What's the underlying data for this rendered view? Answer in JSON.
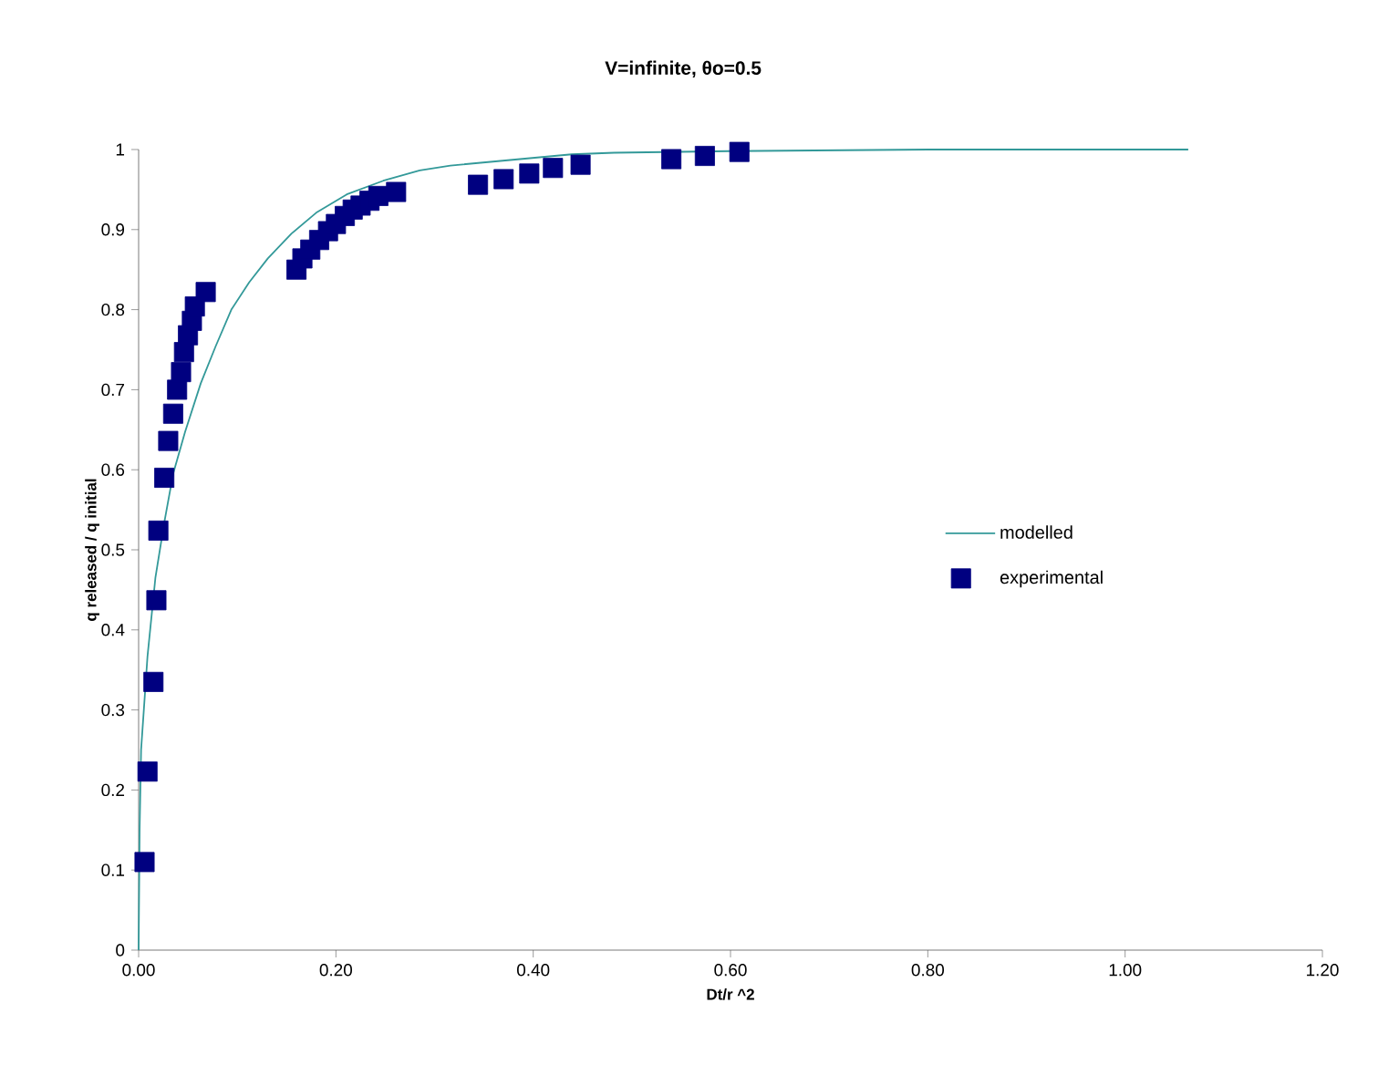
{
  "chart_data": {
    "type": "scatter",
    "title": "V=infinite, θo=0.5",
    "xlabel": "Dt/r ^2",
    "ylabel": "q released / q initial",
    "xlim": [
      0,
      1.2
    ],
    "xticks": [
      {
        "value": 0,
        "label": "0.00"
      },
      {
        "value": 0.2,
        "label": "0.20"
      },
      {
        "value": 0.4,
        "label": "0.40"
      },
      {
        "value": 0.6,
        "label": "0.60"
      },
      {
        "value": 0.8,
        "label": "0.80"
      },
      {
        "value": 1.0,
        "label": "1.00"
      },
      {
        "value": 1.2,
        "label": "1.20"
      }
    ],
    "ylim": [
      0,
      1
    ],
    "yticks": [
      0,
      0.1,
      0.2,
      0.3,
      0.4,
      0.5,
      0.6,
      0.7,
      0.8,
      0.9,
      1
    ],
    "grid": false,
    "legend": "right",
    "series": [
      {
        "name": "modelled",
        "type": "line",
        "color": "#339999",
        "x": [
          0,
          0.001,
          0.0025,
          0.009,
          0.017,
          0.026,
          0.035,
          0.047,
          0.063,
          0.078,
          0.094,
          0.112,
          0.131,
          0.155,
          0.18,
          0.211,
          0.248,
          0.285,
          0.316,
          0.439,
          0.482,
          0.599,
          0.8,
          1.064
        ],
        "values": [
          0,
          0.15,
          0.25,
          0.367,
          0.465,
          0.534,
          0.595,
          0.647,
          0.708,
          0.754,
          0.8,
          0.834,
          0.864,
          0.895,
          0.921,
          0.944,
          0.961,
          0.974,
          0.98,
          0.994,
          0.996,
          0.998,
          1.0,
          1.0
        ]
      },
      {
        "name": "experimental",
        "marker": "square",
        "color": "#000080",
        "x": [
          0.006,
          0.009,
          0.015,
          0.018,
          0.02,
          0.026,
          0.03,
          0.035,
          0.039,
          0.043,
          0.046,
          0.05,
          0.054,
          0.057,
          0.068,
          0.16,
          0.166,
          0.174,
          0.183,
          0.192,
          0.2,
          0.209,
          0.217,
          0.225,
          0.234,
          0.243,
          0.261,
          0.344,
          0.37,
          0.396,
          0.42,
          0.448,
          0.54,
          0.574,
          0.609
        ],
        "values": [
          0.11,
          0.223,
          0.335,
          0.437,
          0.524,
          0.59,
          0.636,
          0.67,
          0.7,
          0.722,
          0.747,
          0.768,
          0.786,
          0.804,
          0.822,
          0.85,
          0.864,
          0.875,
          0.887,
          0.898,
          0.907,
          0.917,
          0.925,
          0.93,
          0.936,
          0.942,
          0.947,
          0.956,
          0.963,
          0.97,
          0.977,
          0.981,
          0.988,
          0.992,
          0.997
        ]
      }
    ]
  }
}
